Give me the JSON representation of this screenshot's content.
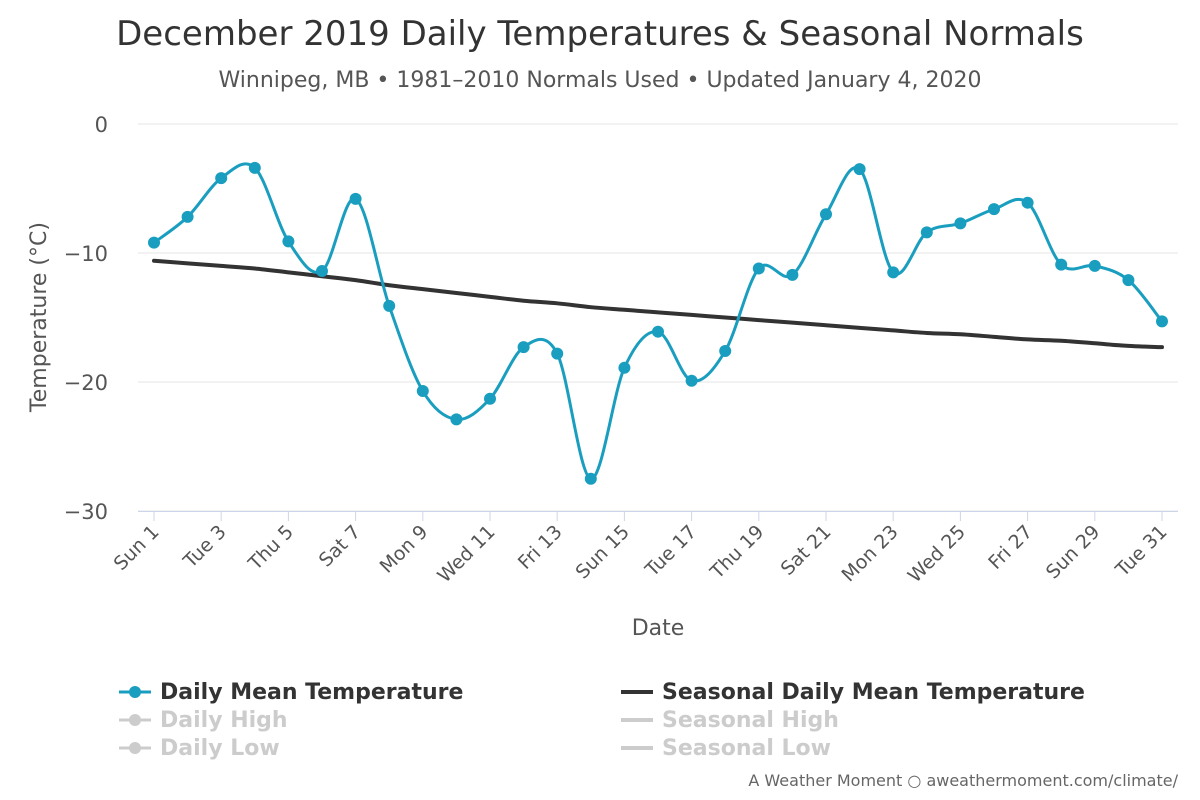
{
  "header": {
    "title": "December 2019 Daily Temperatures & Seasonal Normals",
    "subtitle": "Winnipeg, MB • 1981–2010 Normals Used • Updated January 4, 2020"
  },
  "legend": {
    "items": [
      {
        "label": "Daily Mean Temperature",
        "symbol": "line-marker",
        "color": "#1a9ec0",
        "enabled": true
      },
      {
        "label": "Seasonal Daily Mean Temperature",
        "symbol": "line",
        "color": "#333333",
        "enabled": true
      },
      {
        "label": "Daily High",
        "symbol": "line-marker",
        "color": "#cccccc",
        "enabled": false
      },
      {
        "label": "Seasonal High",
        "symbol": "line",
        "color": "#cccccc",
        "enabled": false
      },
      {
        "label": "Daily Low",
        "symbol": "line-marker",
        "color": "#cccccc",
        "enabled": false
      },
      {
        "label": "Seasonal Low",
        "symbol": "line",
        "color": "#cccccc",
        "enabled": false
      }
    ]
  },
  "credits": "A Weather Moment ○ aweathermoment.com/climate/",
  "chart_data": {
    "type": "line",
    "xlabel": "Date",
    "ylabel": "Temperature (°C)",
    "ylim": [
      -30,
      0
    ],
    "yticks": [
      0,
      -10,
      -20,
      -30
    ],
    "grid": true,
    "legend_position": "bottom",
    "x": [
      1,
      2,
      3,
      4,
      5,
      6,
      7,
      8,
      9,
      10,
      11,
      12,
      13,
      14,
      15,
      16,
      17,
      18,
      19,
      20,
      21,
      22,
      23,
      24,
      25,
      26,
      27,
      28,
      29,
      30,
      31
    ],
    "xtick_labels": [
      {
        "day": 1,
        "label": "Sun 1"
      },
      {
        "day": 3,
        "label": "Tue 3"
      },
      {
        "day": 5,
        "label": "Thu 5"
      },
      {
        "day": 7,
        "label": "Sat 7"
      },
      {
        "day": 9,
        "label": "Mon 9"
      },
      {
        "day": 11,
        "label": "Wed 11"
      },
      {
        "day": 13,
        "label": "Fri 13"
      },
      {
        "day": 15,
        "label": "Sun 15"
      },
      {
        "day": 17,
        "label": "Tue 17"
      },
      {
        "day": 19,
        "label": "Thu 19"
      },
      {
        "day": 21,
        "label": "Sat 21"
      },
      {
        "day": 23,
        "label": "Mon 23"
      },
      {
        "day": 25,
        "label": "Wed 25"
      },
      {
        "day": 27,
        "label": "Fri 27"
      },
      {
        "day": 29,
        "label": "Sun 29"
      },
      {
        "day": 31,
        "label": "Tue 31"
      }
    ],
    "series": [
      {
        "name": "Daily Mean Temperature",
        "color": "#1a9ec0",
        "markers": true,
        "values": [
          -9.2,
          -7.2,
          -4.2,
          -3.4,
          -9.1,
          -11.4,
          -5.8,
          -14.1,
          -20.7,
          -22.9,
          -21.3,
          -17.3,
          -17.8,
          -27.5,
          -18.9,
          -16.1,
          -19.9,
          -17.6,
          -11.2,
          -11.7,
          -7.0,
          -3.5,
          -11.5,
          -8.4,
          -7.7,
          -6.6,
          -6.1,
          -10.9,
          -11.0,
          -12.1,
          -15.3
        ]
      },
      {
        "name": "Seasonal Daily Mean Temperature",
        "color": "#333333",
        "markers": false,
        "values": [
          -10.6,
          -10.8,
          -11.0,
          -11.2,
          -11.5,
          -11.8,
          -12.1,
          -12.5,
          -12.8,
          -13.1,
          -13.4,
          -13.7,
          -13.9,
          -14.2,
          -14.4,
          -14.6,
          -14.8,
          -15.0,
          -15.2,
          -15.4,
          -15.6,
          -15.8,
          -16.0,
          -16.2,
          -16.3,
          -16.5,
          -16.7,
          -16.8,
          -17.0,
          -17.2,
          -17.3
        ]
      }
    ]
  }
}
